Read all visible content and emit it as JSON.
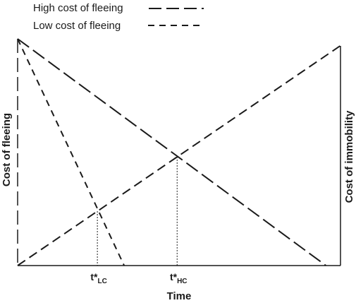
{
  "chart_data": {
    "type": "line",
    "xlabel": "Time",
    "ylabel_left": "Cost of fleeing",
    "ylabel_right": "Cost of immobility",
    "xlim": [
      0,
      1
    ],
    "ylim": [
      0,
      1
    ],
    "series": [
      {
        "name": "High cost of fleeing",
        "style": "long-dash",
        "points": [
          [
            0,
            1
          ],
          [
            0.955,
            0
          ]
        ]
      },
      {
        "name": "Low cost of fleeing",
        "style": "short-dash",
        "points": [
          [
            0,
            1
          ],
          [
            0.33,
            0
          ]
        ]
      },
      {
        "style": "medium-dash",
        "points": [
          [
            0,
            0
          ],
          [
            1,
            0.97
          ]
        ]
      }
    ],
    "markers": [
      {
        "label_main": "t*",
        "label_sub": "LC",
        "x": 0.247,
        "y": 0.24
      },
      {
        "label_main": "t*",
        "label_sub": "HC",
        "x": 0.494,
        "y": 0.48
      }
    ],
    "colors": {
      "line": "#1a1a1a",
      "background": "#ffffff"
    }
  }
}
